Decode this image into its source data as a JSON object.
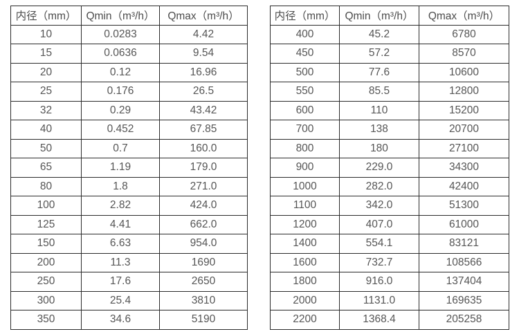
{
  "page": {
    "background": "#ffffff",
    "text_color": "#555555",
    "border_color": "#2a2a2a"
  },
  "tables": [
    {
      "id": "small-diameter",
      "headers": [
        "内径（mm）",
        "Qmin（m³/h）",
        "Qmax（m³/h）"
      ],
      "rows": [
        [
          "10",
          "0.0283",
          "4.42"
        ],
        [
          "15",
          "0.0636",
          "9.54"
        ],
        [
          "20",
          "0.12",
          "16.96"
        ],
        [
          "25",
          "0.176",
          "26.5"
        ],
        [
          "32",
          "0.29",
          "43.42"
        ],
        [
          "40",
          "0.452",
          "67.85"
        ],
        [
          "50",
          "0.7",
          "160.0"
        ],
        [
          "65",
          "1.19",
          "179.0"
        ],
        [
          "80",
          "1.8",
          "271.0"
        ],
        [
          "100",
          "2.82",
          "424.0"
        ],
        [
          "125",
          "4.41",
          "662.0"
        ],
        [
          "150",
          "6.63",
          "954.0"
        ],
        [
          "200",
          "11.3",
          "1690"
        ],
        [
          "250",
          "17.6",
          "2650"
        ],
        [
          "300",
          "25.4",
          "3810"
        ],
        [
          "350",
          "34.6",
          "5190"
        ]
      ]
    },
    {
      "id": "large-diameter",
      "headers": [
        "内径（mm）",
        "Qmin（m³/h）",
        "Qmax（m³/h）"
      ],
      "rows": [
        [
          "400",
          "45.2",
          "6780"
        ],
        [
          "450",
          "57.2",
          "8570"
        ],
        [
          "500",
          "77.6",
          "10600"
        ],
        [
          "550",
          "85.5",
          "12800"
        ],
        [
          "600",
          "110",
          "15200"
        ],
        [
          "700",
          "138",
          "20700"
        ],
        [
          "800",
          "180",
          "27100"
        ],
        [
          "900",
          "229.0",
          "34300"
        ],
        [
          "1000",
          "282.0",
          "42400"
        ],
        [
          "1100",
          "342.0",
          "51300"
        ],
        [
          "1200",
          "407.0",
          "61000"
        ],
        [
          "1400",
          "554.1",
          "83121"
        ],
        [
          "1600",
          "732.7",
          "108566"
        ],
        [
          "1800",
          "916.0",
          "137404"
        ],
        [
          "2000",
          "1131.0",
          "169635"
        ],
        [
          "2200",
          "1368.4",
          "205258"
        ]
      ]
    }
  ]
}
